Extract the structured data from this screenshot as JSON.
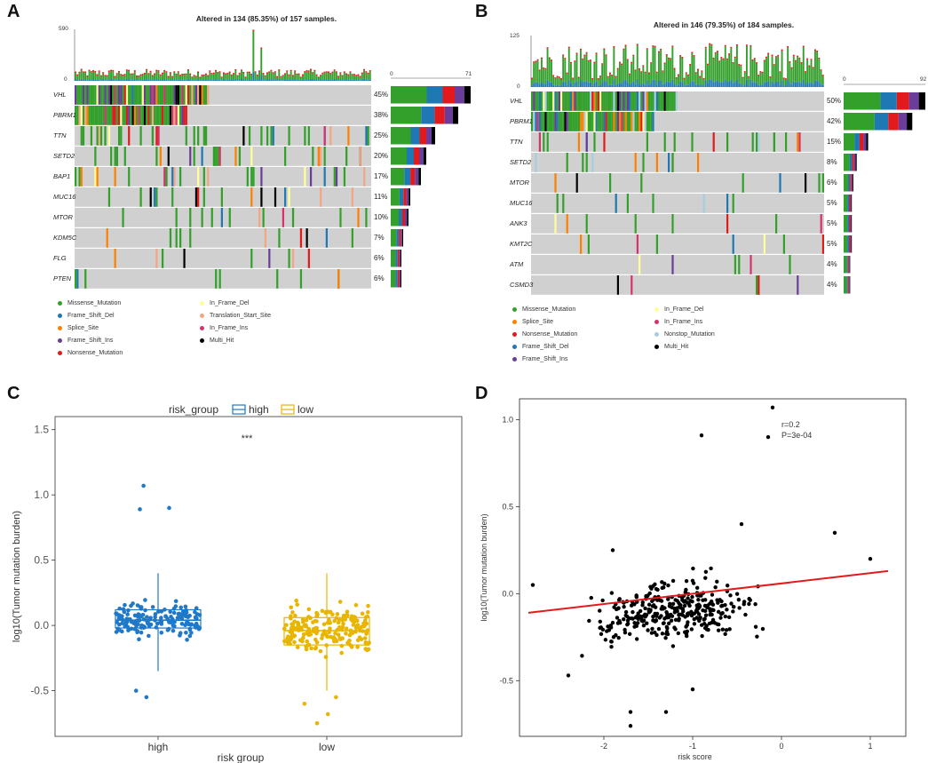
{
  "panel_labels": [
    "A",
    "B",
    "C",
    "D"
  ],
  "colors": {
    "Missense_Mutation": "#33a02c",
    "Frame_Shift_Del": "#1f78b4",
    "Splice_Site": "#ff7f00",
    "Frame_Shift_Ins": "#6a3d9a",
    "Nonsense_Mutation": "#e31a1c",
    "In_Frame_Del": "#ffff99",
    "Translation_Start_Site": "#f4a582",
    "In_Frame_Ins": "#d6336c",
    "Multi_Hit": "#000000",
    "Nonstop_Mutation": "#a6cee3",
    "bg": "#d0d0d0",
    "high": "#1f78c8",
    "low": "#e8b500",
    "fit": "#e31a1c"
  },
  "chart_data": [
    {
      "type": "oncoplot",
      "panel": "A",
      "title": "Altered in 134 (85.35%) of 157 samples.",
      "top_axis": {
        "max_label": "590",
        "min_label": "0"
      },
      "side_axis": {
        "min_label": "0",
        "max_label": "71"
      },
      "genes": [
        "VHL",
        "PBRM1",
        "TTN",
        "SETD2",
        "BAP1",
        "MUC16",
        "MTOR",
        "KDM5C",
        "FLG",
        "PTEN"
      ],
      "percents": [
        "45%",
        "38%",
        "25%",
        "20%",
        "17%",
        "11%",
        "10%",
        "7%",
        "6%",
        "6%"
      ],
      "legend": [
        "Missense_Mutation",
        "Frame_Shift_Del",
        "Splice_Site",
        "Frame_Shift_Ins",
        "Nonsense_Mutation",
        "In_Frame_Del",
        "Translation_Start_Site",
        "In_Frame_Ins",
        "Multi_Hit"
      ]
    },
    {
      "type": "oncoplot",
      "panel": "B",
      "title": "Altered in 146 (79.35%) of 184 samples.",
      "top_axis": {
        "max_label": "125",
        "min_label": "0"
      },
      "side_axis": {
        "min_label": "0",
        "max_label": "92"
      },
      "genes": [
        "VHL",
        "PBRM1",
        "TTN",
        "SETD2",
        "MTOR",
        "MUC16",
        "ANK3",
        "KMT2C",
        "ATM",
        "CSMD3"
      ],
      "percents": [
        "50%",
        "42%",
        "15%",
        "8%",
        "6%",
        "5%",
        "5%",
        "5%",
        "4%",
        "4%"
      ],
      "legend": [
        "Missense_Mutation",
        "Splice_Site",
        "Nonsense_Mutation",
        "Frame_Shift_Del",
        "Frame_Shift_Ins",
        "In_Frame_Del",
        "In_Frame_Ins",
        "Nonstop_Mutation",
        "Multi_Hit"
      ]
    },
    {
      "type": "box",
      "panel": "C",
      "legend_title": "risk_group",
      "legend": [
        "high",
        "low"
      ],
      "categories": [
        "high",
        "low"
      ],
      "xlabel": "risk group",
      "ylabel": "log10(Tumor mutation burden)",
      "ylim": [
        -0.85,
        1.6
      ],
      "yticks": [
        -0.5,
        0.0,
        0.5,
        1.0,
        1.5
      ],
      "ytick_labels": [
        "-0.5",
        "0.0",
        "0.5",
        "1.0",
        "1.5"
      ],
      "significance": "***",
      "boxes": [
        {
          "name": "high",
          "q1": -0.02,
          "median": 0.04,
          "q3": 0.12,
          "whisker_low": -0.35,
          "whisker_high": 0.4,
          "outliers": [
            0.9,
            0.89,
            1.07,
            -0.5,
            -0.55
          ]
        },
        {
          "name": "low",
          "q1": -0.15,
          "median": -0.04,
          "q3": 0.06,
          "whisker_low": -0.5,
          "whisker_high": 0.4,
          "outliers": [
            -0.55,
            -0.6,
            -0.68,
            -0.75
          ]
        }
      ]
    },
    {
      "type": "scatter",
      "panel": "D",
      "xlabel": "risk score",
      "ylabel": "log10(Tumor mutation burden)",
      "xlim": [
        -2.95,
        1.4
      ],
      "ylim": [
        -0.82,
        1.12
      ],
      "xticks": [
        -2,
        -1,
        0,
        1
      ],
      "xtick_labels": [
        "-2",
        "-1",
        "0",
        "1"
      ],
      "yticks": [
        -0.5,
        0.0,
        0.5,
        1.0
      ],
      "ytick_labels": [
        "-0.5",
        "0.0",
        "0.5",
        "1.0"
      ],
      "annotation": [
        "r=0.2",
        "P=3e-04"
      ],
      "fit": {
        "x": [
          -2.85,
          1.2
        ],
        "y": [
          -0.11,
          0.13
        ]
      },
      "highlight_points": [
        [
          -0.1,
          1.07
        ],
        [
          -0.9,
          0.91
        ],
        [
          -0.15,
          0.9
        ],
        [
          -0.45,
          0.4
        ],
        [
          -1.9,
          0.25
        ],
        [
          1.0,
          0.2
        ],
        [
          0.6,
          0.35
        ],
        [
          -1.0,
          -0.55
        ],
        [
          -1.7,
          -0.68
        ],
        [
          -1.7,
          -0.76
        ],
        [
          -1.3,
          -0.68
        ],
        [
          -2.4,
          -0.47
        ],
        [
          -2.8,
          0.05
        ]
      ],
      "n_points": 340
    }
  ]
}
